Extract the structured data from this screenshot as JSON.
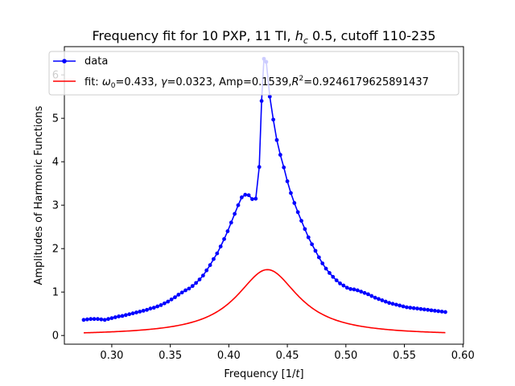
{
  "chart_data": {
    "type": "line",
    "title_main": "Frequency fit for 10 PXP, 11 TI, ",
    "title_math": "h",
    "title_math_sub": "c",
    "title_tail": " 0.5, cutoff 110-235",
    "xlabel_main": "Frequency [1/",
    "xlabel_math": "t",
    "xlabel_tail": "]",
    "ylabel": "Amplitudes of Harmonic Functions",
    "xlim": [
      0.2595,
      0.6005
    ],
    "ylim": [
      -0.2,
      6.65
    ],
    "xticks": [
      0.3,
      0.35,
      0.4,
      0.45,
      0.5,
      0.55,
      0.6
    ],
    "xtick_labels": [
      "0.30",
      "0.35",
      "0.40",
      "0.45",
      "0.50",
      "0.55",
      "0.60"
    ],
    "yticks": [
      0,
      1,
      2,
      3,
      4,
      5,
      6
    ],
    "ytick_labels": [
      "0",
      "1",
      "2",
      "3",
      "4",
      "5",
      "6"
    ],
    "grid": false,
    "legend_placement": "upper-left",
    "legend": {
      "data_label": "data",
      "fit_omega_sym": "ω",
      "fit_omega_sub": "0",
      "fit_omega_val": "=0.433, ",
      "fit_gamma_sym": "γ",
      "fit_gamma_val": "=0.0323, Amp=0.1539,",
      "fit_r_sym": "R",
      "fit_r_sup": "2",
      "fit_r_val": "=0.9246179625891437"
    },
    "series": [
      {
        "name": "data",
        "color": "#0000ff",
        "style": "line-with-dot-markers",
        "x": [
          0.276,
          0.279,
          0.282,
          0.285,
          0.288,
          0.291,
          0.294,
          0.297,
          0.3,
          0.303,
          0.306,
          0.309,
          0.312,
          0.315,
          0.318,
          0.321,
          0.324,
          0.327,
          0.33,
          0.333,
          0.336,
          0.339,
          0.342,
          0.345,
          0.348,
          0.351,
          0.354,
          0.357,
          0.36,
          0.363,
          0.366,
          0.369,
          0.372,
          0.375,
          0.378,
          0.381,
          0.384,
          0.387,
          0.39,
          0.393,
          0.396,
          0.399,
          0.402,
          0.405,
          0.408,
          0.411,
          0.414,
          0.417,
          0.42,
          0.423,
          0.426,
          0.428,
          0.43,
          0.432,
          0.435,
          0.438,
          0.441,
          0.444,
          0.447,
          0.45,
          0.453,
          0.456,
          0.459,
          0.462,
          0.465,
          0.468,
          0.471,
          0.474,
          0.477,
          0.48,
          0.483,
          0.486,
          0.489,
          0.492,
          0.495,
          0.498,
          0.501,
          0.504,
          0.507,
          0.51,
          0.513,
          0.516,
          0.519,
          0.522,
          0.525,
          0.528,
          0.531,
          0.534,
          0.537,
          0.54,
          0.543,
          0.546,
          0.549,
          0.552,
          0.555,
          0.558,
          0.561,
          0.564,
          0.567,
          0.57,
          0.573,
          0.576,
          0.579,
          0.582,
          0.585
        ],
        "y": [
          0.36,
          0.37,
          0.38,
          0.38,
          0.38,
          0.37,
          0.36,
          0.38,
          0.4,
          0.42,
          0.44,
          0.45,
          0.47,
          0.49,
          0.51,
          0.53,
          0.55,
          0.57,
          0.59,
          0.62,
          0.64,
          0.67,
          0.7,
          0.74,
          0.78,
          0.83,
          0.88,
          0.94,
          0.99,
          1.04,
          1.08,
          1.14,
          1.21,
          1.29,
          1.38,
          1.5,
          1.62,
          1.76,
          1.89,
          2.05,
          2.22,
          2.4,
          2.6,
          2.8,
          3.0,
          3.18,
          3.24,
          3.23,
          3.14,
          3.15,
          3.88,
          5.4,
          6.37,
          6.3,
          5.5,
          4.97,
          4.5,
          4.16,
          3.87,
          3.55,
          3.28,
          3.05,
          2.84,
          2.64,
          2.45,
          2.26,
          2.1,
          1.95,
          1.8,
          1.66,
          1.54,
          1.44,
          1.35,
          1.27,
          1.2,
          1.15,
          1.1,
          1.07,
          1.06,
          1.04,
          1.01,
          0.98,
          0.95,
          0.91,
          0.87,
          0.84,
          0.81,
          0.78,
          0.75,
          0.73,
          0.71,
          0.69,
          0.67,
          0.65,
          0.64,
          0.63,
          0.62,
          0.61,
          0.6,
          0.59,
          0.58,
          0.57,
          0.56,
          0.55,
          0.54
        ]
      },
      {
        "name": "fit",
        "color": "#ff0000",
        "style": "line",
        "model": "lorentzian",
        "omega0": 0.433,
        "gamma": 0.0323,
        "amp": 0.1539,
        "x_range": [
          0.276,
          0.585
        ]
      }
    ]
  }
}
